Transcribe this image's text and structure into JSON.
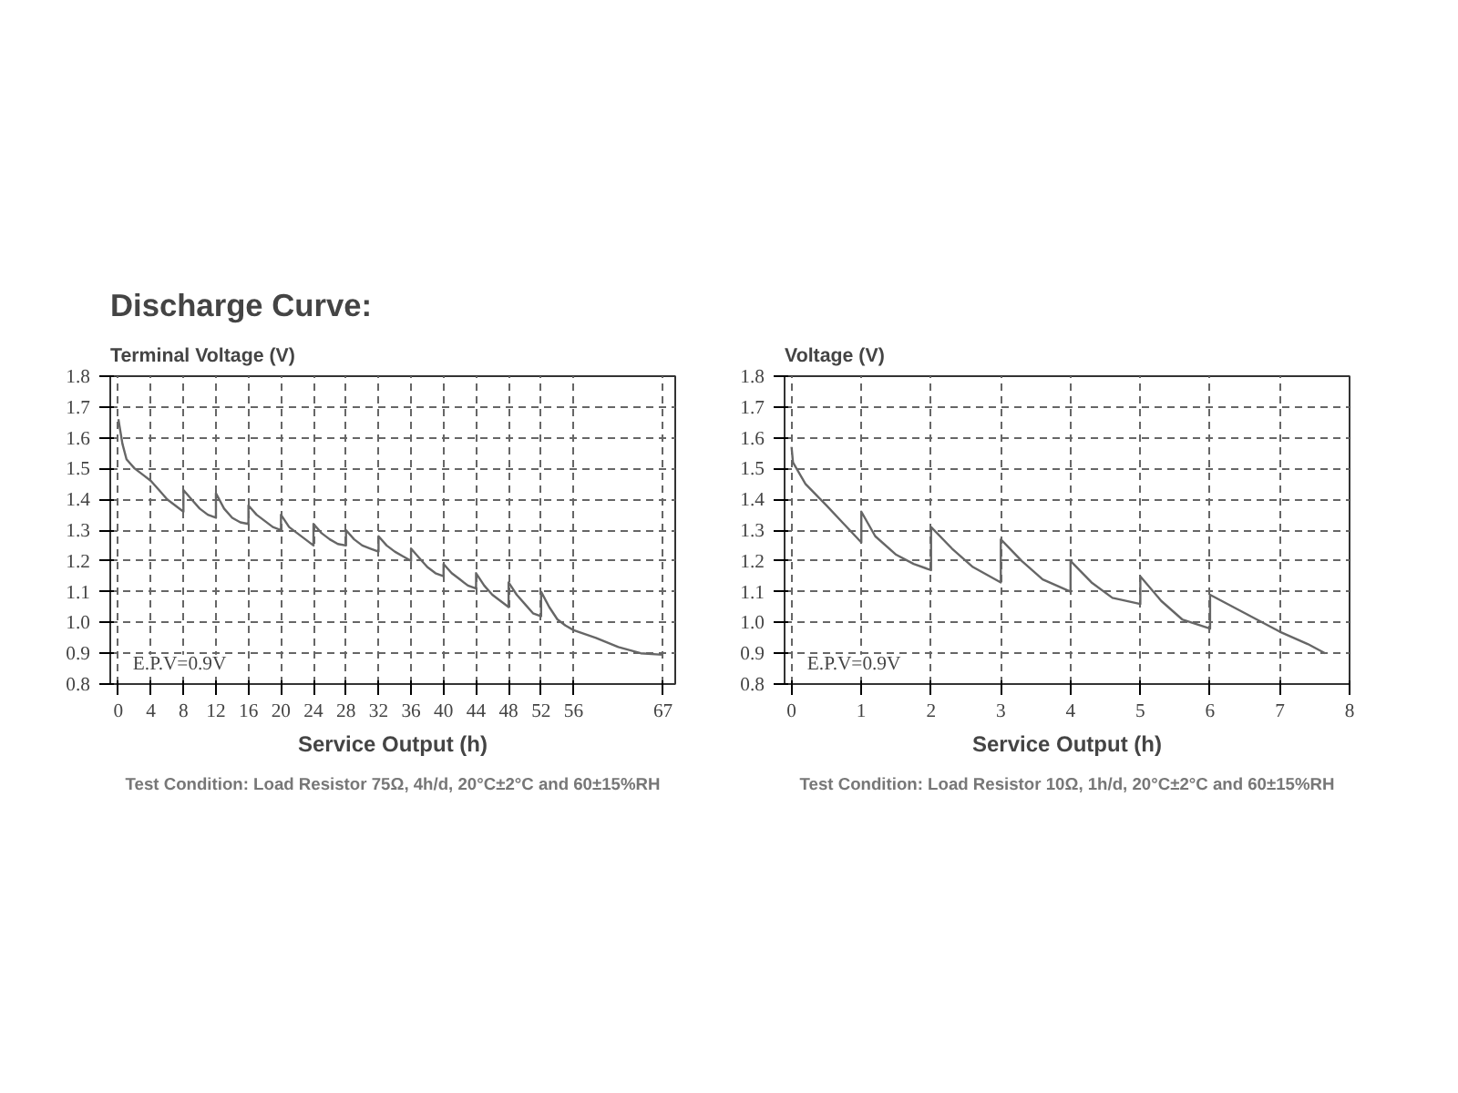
{
  "chart_data": [
    {
      "type": "line",
      "title": "Discharge Curve:",
      "ylabel": "Terminal Voltage (V)",
      "xlabel": "Service Output (h)",
      "annotations": [
        "E.P.V=0.9V",
        "Test Condition: Load Resistor 75Ω, 4h/d, 20°C±2°C and 60±15%RH"
      ],
      "x": [
        0,
        0.5,
        1,
        2,
        3,
        4,
        5,
        6,
        7,
        8,
        8,
        9,
        10,
        11,
        12,
        12,
        13,
        14,
        15,
        16,
        16,
        17,
        18,
        19,
        20,
        20,
        21,
        22,
        23,
        24,
        24,
        25,
        26,
        27,
        28,
        28,
        29,
        30,
        31,
        32,
        32,
        33,
        34,
        35,
        36,
        36,
        37,
        38,
        39,
        40,
        40,
        41,
        42,
        43,
        44,
        44,
        45,
        46,
        47,
        48,
        48,
        49,
        50,
        51,
        52,
        52,
        53,
        54,
        55,
        56,
        58.75,
        61.5,
        64.25,
        67
      ],
      "series": [
        {
          "color": "#666666",
          "values": [
            1.66,
            1.58,
            1.53,
            1.5,
            1.48,
            1.46,
            1.43,
            1.4,
            1.38,
            1.36,
            1.43,
            1.4,
            1.37,
            1.35,
            1.34,
            1.42,
            1.37,
            1.34,
            1.325,
            1.32,
            1.38,
            1.35,
            1.33,
            1.31,
            1.3,
            1.35,
            1.31,
            1.29,
            1.27,
            1.25,
            1.32,
            1.29,
            1.27,
            1.255,
            1.25,
            1.3,
            1.27,
            1.25,
            1.24,
            1.23,
            1.28,
            1.25,
            1.23,
            1.215,
            1.2,
            1.24,
            1.21,
            1.18,
            1.16,
            1.15,
            1.19,
            1.16,
            1.14,
            1.12,
            1.11,
            1.16,
            1.12,
            1.09,
            1.07,
            1.05,
            1.13,
            1.09,
            1.06,
            1.03,
            1.02,
            1.1,
            1.05,
            1.01,
            0.99,
            0.975,
            0.95,
            0.92,
            0.9,
            0.895
          ]
        }
      ],
      "xlim": [
        -1,
        68.5
      ],
      "ylim": [
        0.8,
        1.8
      ],
      "xticks": [
        0,
        4,
        8,
        12,
        16,
        20,
        24,
        28,
        32,
        36,
        40,
        44,
        48,
        52,
        56,
        67
      ],
      "yticks": [
        0.8,
        0.9,
        {
          "value": 1,
          "label": "1.0"
        },
        1.1,
        1.2,
        1.3,
        1.4,
        1.5,
        1.6,
        1.7,
        1.8
      ],
      "grid": true
    },
    {
      "type": "line",
      "ylabel": "Voltage (V)",
      "xlabel": "Service Output (h)",
      "annotations": [
        "E.P.V=0.9V",
        "Test Condition: Load Resistor 10Ω, 1h/d, 20°C±2°C and 60±15%RH"
      ],
      "x": [
        0,
        0.02,
        0.2,
        0.5,
        0.75,
        1,
        1,
        1.2,
        1.5,
        1.75,
        2,
        2,
        2.3,
        2.6,
        3,
        3,
        3.3,
        3.6,
        4,
        4,
        4.3,
        4.6,
        5,
        5,
        5.3,
        5.6,
        6,
        6,
        6.5,
        7,
        7.4,
        7.65
      ],
      "series": [
        {
          "color": "#666666",
          "values": [
            1.57,
            1.52,
            1.45,
            1.38,
            1.32,
            1.26,
            1.36,
            1.28,
            1.22,
            1.19,
            1.17,
            1.31,
            1.24,
            1.18,
            1.13,
            1.27,
            1.2,
            1.14,
            1.1,
            1.2,
            1.13,
            1.08,
            1.06,
            1.15,
            1.07,
            1.01,
            0.98,
            1.09,
            1.03,
            0.97,
            0.93,
            0.9
          ]
        }
      ],
      "xlim": [
        -0.1,
        8
      ],
      "ylim": [
        0.8,
        1.8
      ],
      "xticks": [
        0,
        1,
        2,
        3,
        4,
        5,
        6,
        7,
        8
      ],
      "yticks": [
        0.8,
        0.9,
        {
          "value": 1,
          "label": "1.0"
        },
        1.1,
        1.2,
        1.3,
        1.4,
        1.5,
        1.6,
        1.7,
        1.8
      ],
      "grid": true
    }
  ]
}
